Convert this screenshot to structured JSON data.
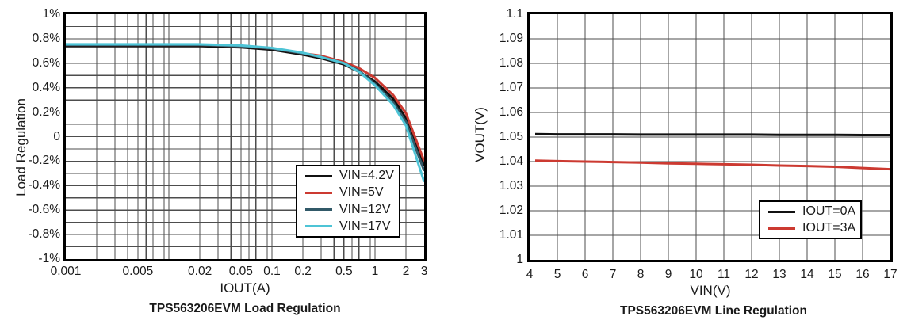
{
  "figure": {
    "background": "#ffffff",
    "grid_color": "#4d4d4d",
    "axis_border_color": "#000000"
  },
  "chart_data": [
    {
      "type": "line",
      "title": "TPS563206EVM Load Regulation",
      "xlabel": "IOUT(A)",
      "ylabel": "Load Regulation",
      "x_scale": "log",
      "xlim": [
        0.001,
        3
      ],
      "ylim": [
        -1,
        1
      ],
      "y_unit": "%",
      "grid": "on",
      "legend_position": "inside-bottom-right",
      "x_ticks": {
        "values": [
          0.001,
          0.005,
          0.02,
          0.05,
          0.1,
          0.2,
          0.5,
          1,
          2,
          3
        ],
        "labels": [
          "0.001",
          "0.005",
          "0.02",
          "0.05",
          "0.1",
          "0.2",
          "0.5",
          "1",
          "2",
          "3"
        ]
      },
      "y_ticks": {
        "values": [
          1,
          0.8,
          0.6,
          0.4,
          0.2,
          0,
          -0.2,
          -0.4,
          -0.6,
          -0.8,
          -1
        ],
        "labels": [
          "1%",
          "0.8%",
          "0.6%",
          "0.4%",
          "0.2%",
          "0",
          "-0.2%",
          "-0.4%",
          "-0.6%",
          "-0.8%",
          "-1%"
        ]
      },
      "grid_x_lines": [
        0.002,
        0.003,
        0.004,
        0.005,
        0.006,
        0.007,
        0.008,
        0.009,
        0.01,
        0.02,
        0.03,
        0.04,
        0.05,
        0.06,
        0.07,
        0.08,
        0.09,
        0.1,
        0.2,
        0.3,
        0.4,
        0.5,
        0.6,
        0.7,
        0.8,
        0.9,
        1,
        2
      ],
      "grid_y_lines": [
        -0.9,
        -0.8,
        -0.7,
        -0.6,
        -0.5,
        -0.4,
        -0.3,
        -0.2,
        -0.1,
        0,
        0.1,
        0.2,
        0.3,
        0.4,
        0.5,
        0.6,
        0.7,
        0.8,
        0.9
      ],
      "x": [
        0.001,
        0.002,
        0.005,
        0.01,
        0.02,
        0.05,
        0.1,
        0.2,
        0.3,
        0.5,
        0.7,
        1,
        1.5,
        2,
        3
      ],
      "series": [
        {
          "name": "VIN=4.2V",
          "color": "#111111",
          "y": [
            0.74,
            0.74,
            0.74,
            0.74,
            0.74,
            0.73,
            0.71,
            0.67,
            0.64,
            0.59,
            0.53,
            0.45,
            0.31,
            0.15,
            -0.24
          ]
        },
        {
          "name": "VIN=5V",
          "color": "#cc3a31",
          "y": [
            0.75,
            0.75,
            0.75,
            0.75,
            0.75,
            0.74,
            0.72,
            0.68,
            0.66,
            0.61,
            0.56,
            0.48,
            0.34,
            0.19,
            -0.2
          ]
        },
        {
          "name": "VIN=12V",
          "color": "#315968",
          "y": [
            0.75,
            0.75,
            0.75,
            0.75,
            0.75,
            0.74,
            0.72,
            0.68,
            0.65,
            0.6,
            0.54,
            0.43,
            0.28,
            0.12,
            -0.28
          ]
        },
        {
          "name": "VIN=17V",
          "color": "#4ec4d6",
          "y": [
            0.755,
            0.755,
            0.755,
            0.755,
            0.755,
            0.745,
            0.725,
            0.685,
            0.65,
            0.6,
            0.53,
            0.42,
            0.26,
            0.09,
            -0.37
          ]
        }
      ]
    },
    {
      "type": "line",
      "title": "TPS563206EVM Line Regulation",
      "xlabel": "VIN(V)",
      "ylabel": "VOUT(V)",
      "x_scale": "linear",
      "xlim": [
        4,
        17
      ],
      "ylim": [
        1,
        1.1
      ],
      "grid": "on",
      "legend_position": "inside-bottom-right",
      "x_ticks": {
        "values": [
          4,
          5,
          6,
          7,
          8,
          9,
          10,
          11,
          12,
          13,
          14,
          15,
          16,
          17
        ],
        "labels": [
          "4",
          "5",
          "6",
          "7",
          "8",
          "9",
          "10",
          "11",
          "12",
          "13",
          "14",
          "15",
          "16",
          "17"
        ]
      },
      "y_ticks": {
        "values": [
          1.1,
          1.09,
          1.08,
          1.07,
          1.06,
          1.05,
          1.04,
          1.03,
          1.02,
          1.01,
          1
        ],
        "labels": [
          "1.1",
          "1.09",
          "1.08",
          "1.07",
          "1.06",
          "1.05",
          "1.04",
          "1.03",
          "1.02",
          "1.01",
          "1"
        ]
      },
      "grid_x_lines": [
        5,
        6,
        7,
        8,
        9,
        10,
        11,
        12,
        13,
        14,
        15,
        16
      ],
      "grid_y_lines": [
        1.01,
        1.02,
        1.03,
        1.04,
        1.05,
        1.06,
        1.07,
        1.08,
        1.09
      ],
      "x": [
        4.2,
        5,
        6,
        7,
        8,
        9,
        10,
        11,
        12,
        13,
        14,
        15,
        16,
        17
      ],
      "series": [
        {
          "name": "IOUT=0A",
          "color": "#111111",
          "y": [
            1.0512,
            1.0511,
            1.0511,
            1.0511,
            1.051,
            1.051,
            1.051,
            1.051,
            1.051,
            1.0509,
            1.0509,
            1.0509,
            1.0508,
            1.0508
          ]
        },
        {
          "name": "IOUT=3A",
          "color": "#cc3a31",
          "y": [
            1.0404,
            1.0402,
            1.04,
            1.0398,
            1.0396,
            1.0393,
            1.0391,
            1.0389,
            1.0387,
            1.0384,
            1.0382,
            1.0379,
            1.0374,
            1.0369
          ]
        }
      ]
    }
  ]
}
